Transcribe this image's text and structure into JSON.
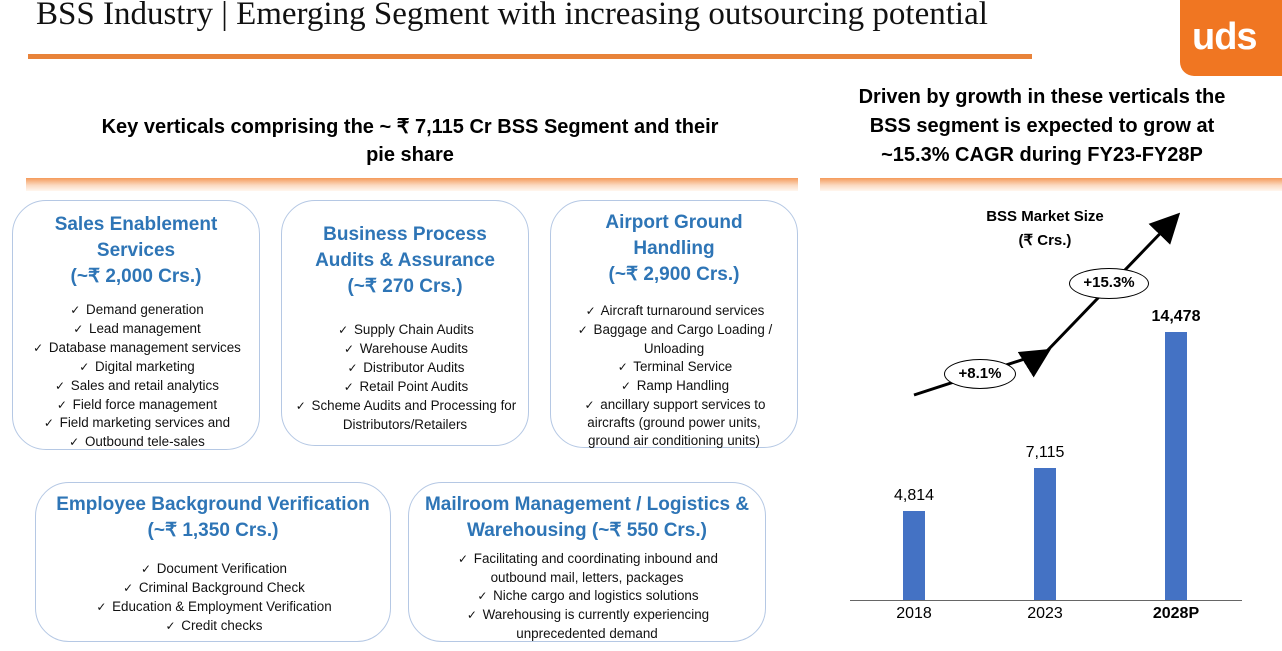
{
  "header": {
    "title": "BSS Industry | Emerging Segment with increasing outsourcing potential",
    "logo": "uds"
  },
  "left_heading": {
    "line1": "Key verticals comprising the ~ ₹ 7,115 Cr BSS Segment and their",
    "line2": "pie share"
  },
  "right_heading": {
    "line1": "Driven by growth in these verticals the",
    "line2": "BSS segment is expected to grow at",
    "line3": "~15.3% CAGR during FY23-FY28P"
  },
  "check": "✓",
  "cards": {
    "sales": {
      "t1": "Sales Enablement",
      "t2": "Services",
      "t3": "(~₹ 2,000 Crs.)",
      "items": [
        "Demand generation",
        "Lead management",
        "Database management services",
        "Digital marketing",
        "Sales and retail analytics",
        "Field force management",
        "Field marketing services and",
        "Outbound tele-sales"
      ]
    },
    "audits": {
      "t1": "Business Process",
      "t2": "Audits & Assurance",
      "t3": "(~₹ 270 Crs.)",
      "items": [
        "Supply Chain Audits",
        "Warehouse Audits",
        "Distributor Audits",
        "Retail Point  Audits",
        "Scheme Audits and Processing for"
      ],
      "extra": "Distributors/Retailers"
    },
    "airport": {
      "t1": "Airport Ground",
      "t2": "Handling",
      "t3": "(~₹ 2,900 Crs.)",
      "items": [
        "Aircraft turnaround services",
        "Baggage and Cargo Loading /"
      ],
      "extra1": "Unloading",
      "items2": [
        "Terminal Service",
        "Ramp Handling",
        "ancillary support services to"
      ],
      "extra2": "aircrafts (ground power units,",
      "extra3": "ground air conditioning units)"
    },
    "verification": {
      "t1": "Employee Background Verification",
      "t2": "(~₹ 1,350 Crs.)",
      "items": [
        "Document Verification",
        "Criminal Background Check",
        "Education & Employment Verification",
        "Credit checks"
      ]
    },
    "mailroom": {
      "t1": "Mailroom Management / Logistics &",
      "t2": "Warehousing (~₹ 550 Crs.)",
      "items": [
        "Facilitating and coordinating inbound and"
      ],
      "extra1": "outbound mail, letters, packages",
      "items2": [
        "Niche cargo and logistics solutions",
        "Warehousing is currently experiencing"
      ],
      "extra2": "unprecedented demand"
    }
  },
  "chart_data": {
    "type": "bar",
    "title": "BSS Market Size",
    "subtitle": "(₹ Crs.)",
    "categories": [
      "2018",
      "2023",
      "2028P"
    ],
    "values": [
      4814,
      7115,
      14478
    ],
    "value_labels": [
      "4,814",
      "7,115",
      "14,478"
    ],
    "annotations": [
      "+8.1%",
      "+15.3%"
    ],
    "colors": {
      "bar": "#4472c4"
    }
  }
}
